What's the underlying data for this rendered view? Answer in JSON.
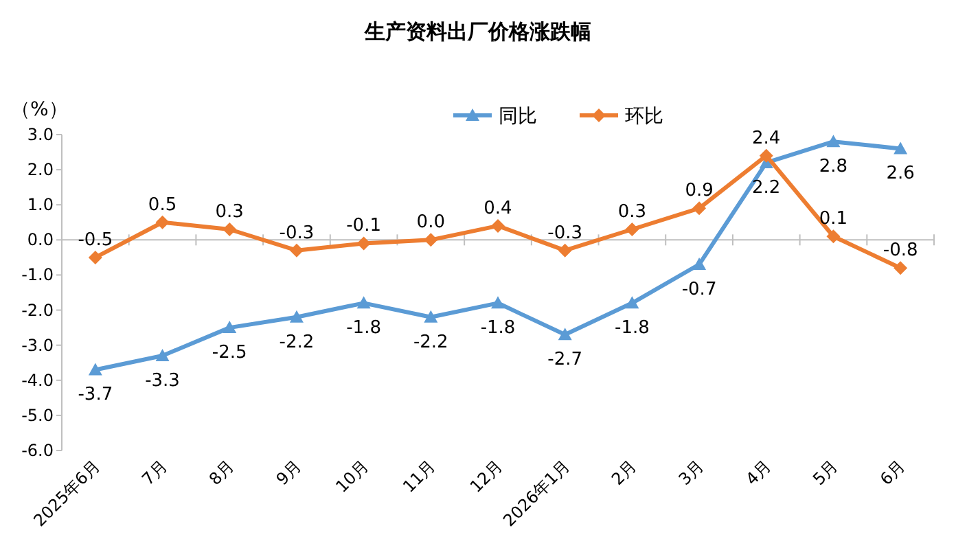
{
  "chart_data": {
    "type": "line",
    "title": "生产资料出厂价格涨跌幅",
    "ylabel": "（%）",
    "categories": [
      "2025年6月",
      "7月",
      "8月",
      "9月",
      "10月",
      "11月",
      "12月",
      "2026年1月",
      "2月",
      "3月",
      "4月",
      "5月",
      "6月"
    ],
    "series": [
      {
        "name": "同比",
        "color": "#5b9bd5",
        "marker": "triangle",
        "values": [
          -3.7,
          -3.3,
          -2.5,
          -2.2,
          -1.8,
          -2.2,
          -1.8,
          -2.7,
          -1.8,
          -0.7,
          2.2,
          2.8,
          2.6
        ],
        "value_labels": [
          "-3.7",
          "-3.3",
          "-2.5",
          "-2.2",
          "-1.8",
          "-2.2",
          "-1.8",
          "-2.7",
          "-1.8",
          "-0.7",
          "2.2",
          "2.8",
          "2.6"
        ]
      },
      {
        "name": "环比",
        "color": "#ed7d31",
        "marker": "diamond",
        "values": [
          -0.5,
          0.5,
          0.3,
          -0.3,
          -0.1,
          0.0,
          0.4,
          -0.3,
          0.3,
          0.9,
          2.4,
          0.1,
          -0.8
        ],
        "value_labels": [
          "-0.5",
          "0.5",
          "0.3",
          "-0.3",
          "-0.1",
          "0.0",
          "0.4",
          "-0.3",
          "0.3",
          "0.9",
          "2.4",
          "0.1",
          "-0.8"
        ]
      }
    ],
    "ylim": [
      -6,
      3
    ],
    "yticks": [
      {
        "value": 3,
        "label": "3.0"
      },
      {
        "value": 2,
        "label": "2.0"
      },
      {
        "value": 1,
        "label": "1.0"
      },
      {
        "value": 0,
        "label": "0.0"
      },
      {
        "value": -1,
        "label": "-1.0"
      },
      {
        "value": -2,
        "label": "-2.0"
      },
      {
        "value": -3,
        "label": "-3.0"
      },
      {
        "value": -4,
        "label": "-4.0"
      },
      {
        "value": -5,
        "label": "-5.0"
      },
      {
        "value": -6,
        "label": "-6.0"
      }
    ],
    "legend": "top",
    "line_style": "solid"
  }
}
